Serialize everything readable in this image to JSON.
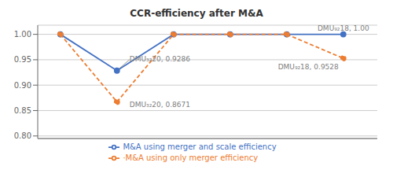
{
  "chart_data": {
    "type": "line",
    "title": "CCR-efficiency after M&A",
    "x": [
      1,
      2,
      3,
      4,
      5,
      6
    ],
    "series": [
      {
        "name": "M&A using merger and scale efficiency",
        "color": "#4472C4",
        "values": [
          1.0,
          0.9286,
          1.0,
          1.0,
          1.0,
          1.0
        ],
        "marker": "circle",
        "line_style": "solid"
      },
      {
        "name": "·M&A using only merger efficiency",
        "color": "#ED7D31",
        "values": [
          1.0,
          0.8671,
          1.0,
          1.0,
          1.0,
          0.9528
        ],
        "marker": "circle",
        "line_style": "dashed"
      }
    ],
    "annotations": [
      {
        "text": "DMU₃₂20, 0.9286",
        "x": 2,
        "y": 0.9286
      },
      {
        "text": "DMU₃₂20, 0.8671",
        "x": 2,
        "y": 0.8671
      },
      {
        "text": "DMU₉₂18, 1.00",
        "x": 6,
        "y": 1.0
      },
      {
        "text": "DMU₉₂18, 0.9528",
        "x": 6,
        "y": 0.9528
      }
    ],
    "xlim": [
      0.6,
      6.6
    ],
    "xticks": [],
    "ylim": [
      0.795,
      1.018
    ],
    "yticks": [
      {
        "value": 0.8,
        "label": "0.80"
      },
      0.85,
      {
        "value": 0.9,
        "label": "0.90"
      },
      0.95,
      {
        "value": 1.0,
        "label": "1.00"
      }
    ],
    "grid": true,
    "legend": "bottom",
    "tick_labels": "y"
  }
}
